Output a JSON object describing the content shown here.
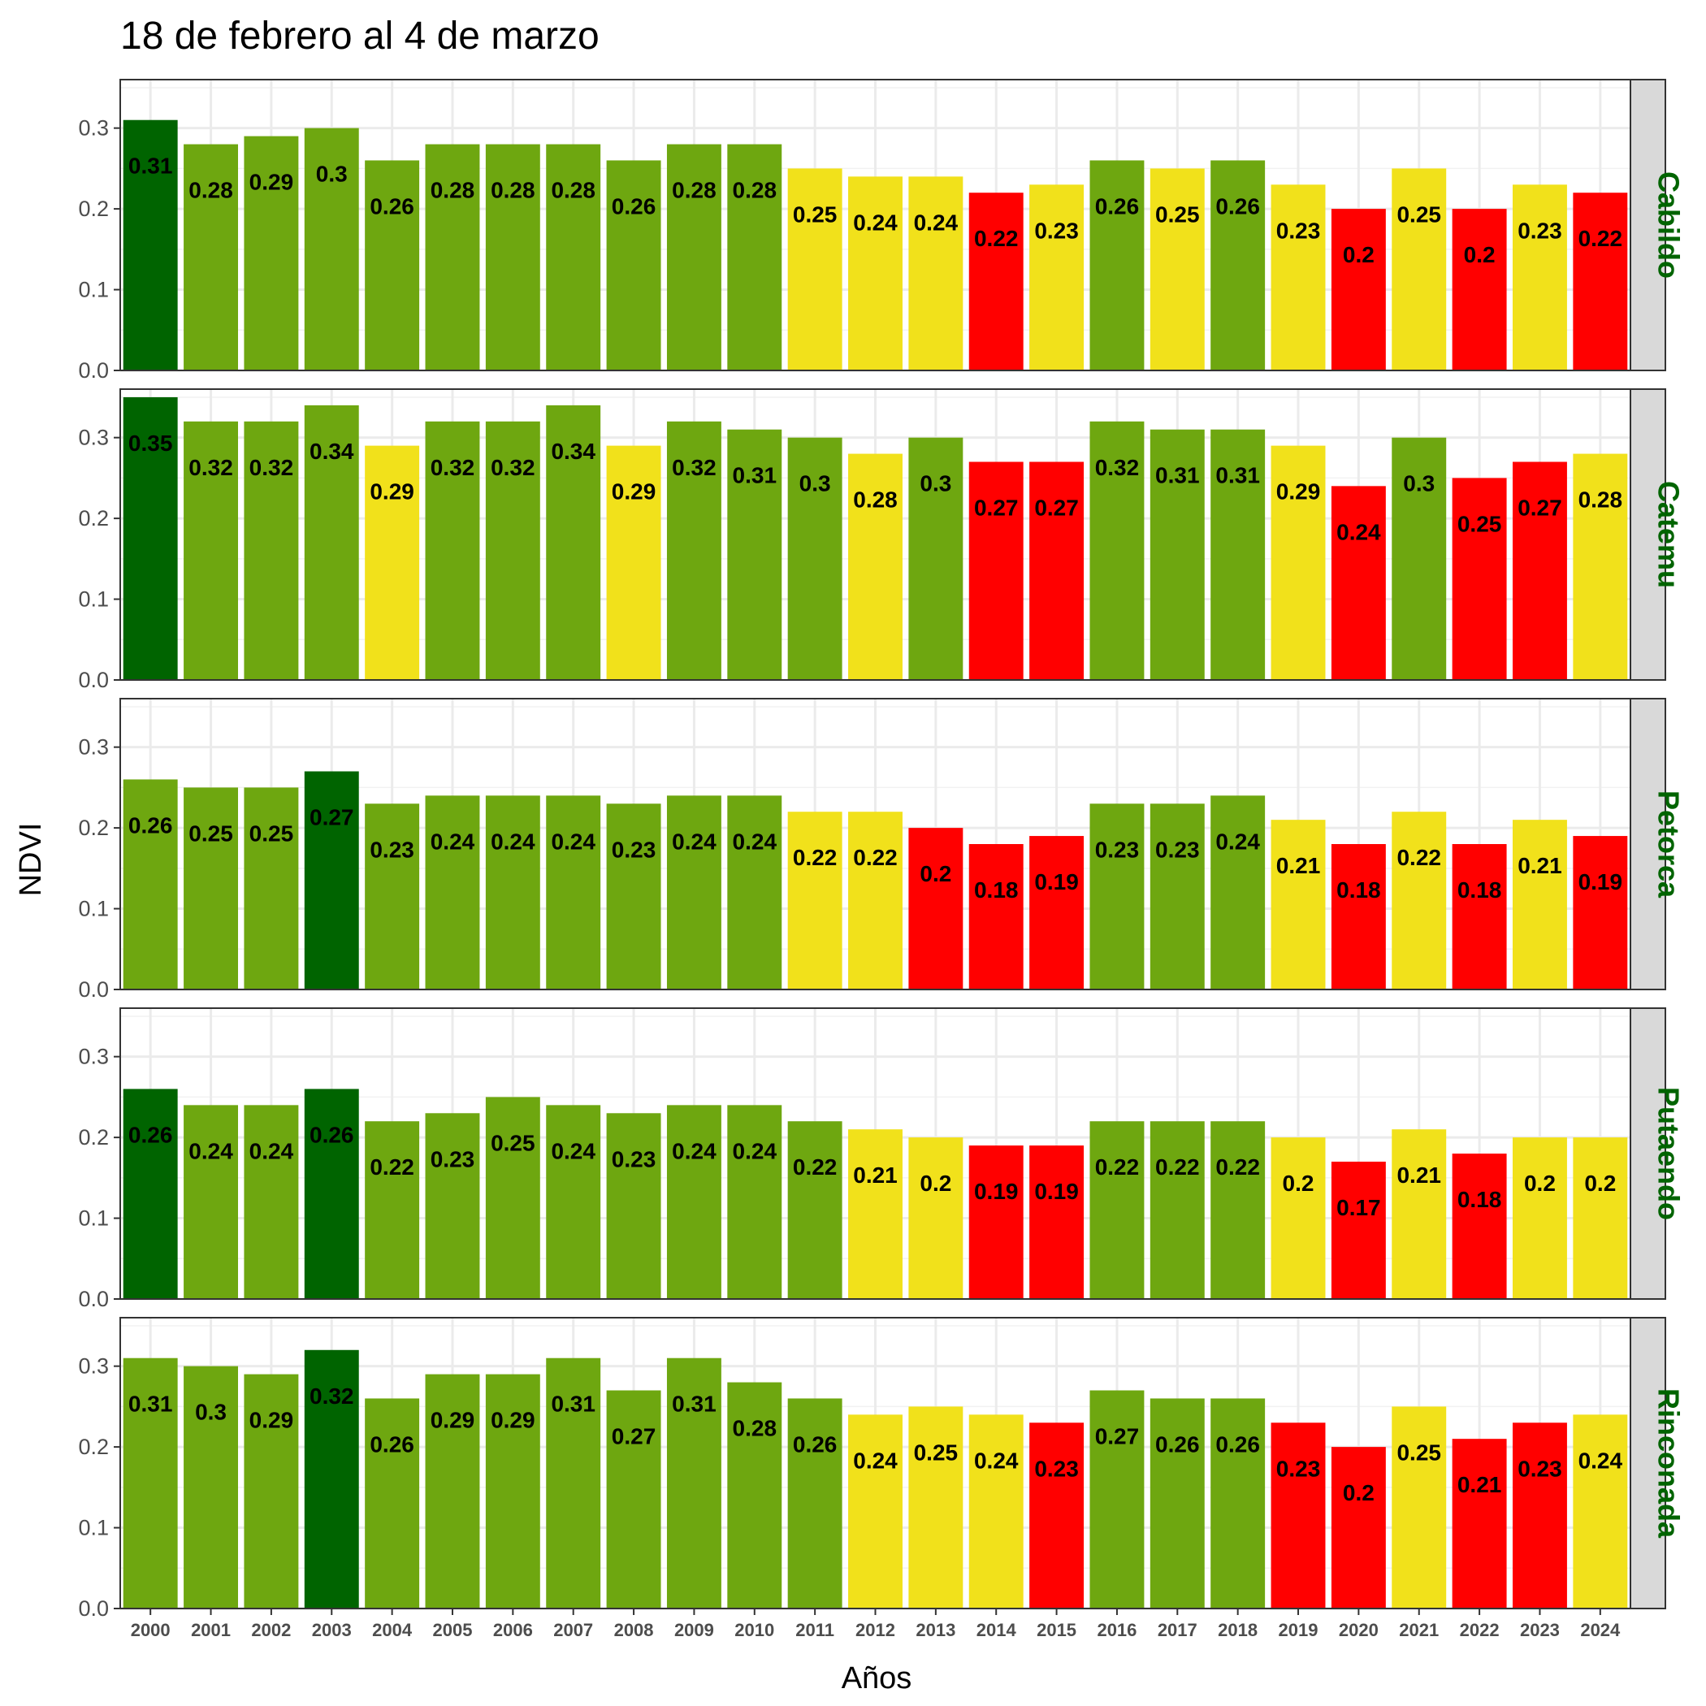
{
  "chart_data": {
    "type": "bar",
    "title": "18 de febrero al 4 de marzo",
    "xlabel": "Años",
    "ylabel": "NDVI",
    "ylim": [
      0,
      0.36
    ],
    "yticks": [
      "0.0",
      "0.1",
      "0.2",
      "0.3"
    ],
    "grid": true,
    "facet": "rows",
    "categories": [
      "2000",
      "2001",
      "2002",
      "2003",
      "2004",
      "2005",
      "2006",
      "2007",
      "2008",
      "2009",
      "2010",
      "2011",
      "2012",
      "2013",
      "2014",
      "2015",
      "2016",
      "2017",
      "2018",
      "2019",
      "2020",
      "2021",
      "2022",
      "2023",
      "2024"
    ],
    "colors": {
      "darkgreen": "#006400",
      "green": "#6ea710",
      "yellow": "#f1e11b",
      "red": "#ff0000"
    },
    "panels": [
      {
        "name": "Cabildo",
        "values": [
          0.31,
          0.28,
          0.29,
          0.3,
          0.26,
          0.28,
          0.28,
          0.28,
          0.26,
          0.28,
          0.28,
          0.25,
          0.24,
          0.24,
          0.22,
          0.23,
          0.26,
          0.25,
          0.26,
          0.23,
          0.2,
          0.25,
          0.2,
          0.23,
          0.22
        ],
        "labels": [
          "0.31",
          "0.28",
          "0.29",
          "0.3",
          "0.26",
          "0.28",
          "0.28",
          "0.28",
          "0.26",
          "0.28",
          "0.28",
          "0.25",
          "0.24",
          "0.24",
          "0.22",
          "0.23",
          "0.26",
          "0.25",
          "0.26",
          "0.23",
          "0.2",
          "0.25",
          "0.2",
          "0.23",
          "0.22"
        ],
        "fill": [
          "darkgreen",
          "green",
          "green",
          "green",
          "green",
          "green",
          "green",
          "green",
          "green",
          "green",
          "green",
          "yellow",
          "yellow",
          "yellow",
          "red",
          "yellow",
          "green",
          "yellow",
          "green",
          "yellow",
          "red",
          "yellow",
          "red",
          "yellow",
          "red"
        ]
      },
      {
        "name": "Catemu",
        "values": [
          0.35,
          0.32,
          0.32,
          0.34,
          0.29,
          0.32,
          0.32,
          0.34,
          0.29,
          0.32,
          0.31,
          0.3,
          0.28,
          0.3,
          0.27,
          0.27,
          0.32,
          0.31,
          0.31,
          0.29,
          0.24,
          0.3,
          0.25,
          0.27,
          0.28
        ],
        "labels": [
          "0.35",
          "0.32",
          "0.32",
          "0.34",
          "0.29",
          "0.32",
          "0.32",
          "0.34",
          "0.29",
          "0.32",
          "0.31",
          "0.3",
          "0.28",
          "0.3",
          "0.27",
          "0.27",
          "0.32",
          "0.31",
          "0.31",
          "0.29",
          "0.24",
          "0.3",
          "0.25",
          "0.27",
          "0.28"
        ],
        "fill": [
          "darkgreen",
          "green",
          "green",
          "green",
          "yellow",
          "green",
          "green",
          "green",
          "yellow",
          "green",
          "green",
          "green",
          "yellow",
          "green",
          "red",
          "red",
          "green",
          "green",
          "green",
          "yellow",
          "red",
          "green",
          "red",
          "red",
          "yellow"
        ]
      },
      {
        "name": "Petorca",
        "values": [
          0.26,
          0.25,
          0.25,
          0.27,
          0.23,
          0.24,
          0.24,
          0.24,
          0.23,
          0.24,
          0.24,
          0.22,
          0.22,
          0.2,
          0.18,
          0.19,
          0.23,
          0.23,
          0.24,
          0.21,
          0.18,
          0.22,
          0.18,
          0.21,
          0.19
        ],
        "labels": [
          "0.26",
          "0.25",
          "0.25",
          "0.27",
          "0.23",
          "0.24",
          "0.24",
          "0.24",
          "0.23",
          "0.24",
          "0.24",
          "0.22",
          "0.22",
          "0.2",
          "0.18",
          "0.19",
          "0.23",
          "0.23",
          "0.24",
          "0.21",
          "0.18",
          "0.22",
          "0.18",
          "0.21",
          "0.19"
        ],
        "fill": [
          "green",
          "green",
          "green",
          "darkgreen",
          "green",
          "green",
          "green",
          "green",
          "green",
          "green",
          "green",
          "yellow",
          "yellow",
          "red",
          "red",
          "red",
          "green",
          "green",
          "green",
          "yellow",
          "red",
          "yellow",
          "red",
          "yellow",
          "red"
        ]
      },
      {
        "name": "Putaendo",
        "values": [
          0.26,
          0.24,
          0.24,
          0.26,
          0.22,
          0.23,
          0.25,
          0.24,
          0.23,
          0.24,
          0.24,
          0.22,
          0.21,
          0.2,
          0.19,
          0.19,
          0.22,
          0.22,
          0.22,
          0.2,
          0.17,
          0.21,
          0.18,
          0.2,
          0.2
        ],
        "labels": [
          "0.26",
          "0.24",
          "0.24",
          "0.26",
          "0.22",
          "0.23",
          "0.25",
          "0.24",
          "0.23",
          "0.24",
          "0.24",
          "0.22",
          "0.21",
          "0.2",
          "0.19",
          "0.19",
          "0.22",
          "0.22",
          "0.22",
          "0.2",
          "0.17",
          "0.21",
          "0.18",
          "0.2",
          "0.2"
        ],
        "fill": [
          "darkgreen",
          "green",
          "green",
          "darkgreen",
          "green",
          "green",
          "green",
          "green",
          "green",
          "green",
          "green",
          "green",
          "yellow",
          "yellow",
          "red",
          "red",
          "green",
          "green",
          "green",
          "yellow",
          "red",
          "yellow",
          "red",
          "yellow",
          "yellow"
        ]
      },
      {
        "name": "Rinconada",
        "values": [
          0.31,
          0.3,
          0.29,
          0.32,
          0.26,
          0.29,
          0.29,
          0.31,
          0.27,
          0.31,
          0.28,
          0.26,
          0.24,
          0.25,
          0.24,
          0.23,
          0.27,
          0.26,
          0.26,
          0.23,
          0.2,
          0.25,
          0.21,
          0.23,
          0.24
        ],
        "labels": [
          "0.31",
          "0.3",
          "0.29",
          "0.32",
          "0.26",
          "0.29",
          "0.29",
          "0.31",
          "0.27",
          "0.31",
          "0.28",
          "0.26",
          "0.24",
          "0.25",
          "0.24",
          "0.23",
          "0.27",
          "0.26",
          "0.26",
          "0.23",
          "0.2",
          "0.25",
          "0.21",
          "0.23",
          "0.24"
        ],
        "fill": [
          "green",
          "green",
          "green",
          "darkgreen",
          "green",
          "green",
          "green",
          "green",
          "green",
          "green",
          "green",
          "green",
          "yellow",
          "yellow",
          "yellow",
          "red",
          "green",
          "green",
          "green",
          "red",
          "red",
          "yellow",
          "red",
          "red",
          "yellow"
        ]
      }
    ]
  }
}
